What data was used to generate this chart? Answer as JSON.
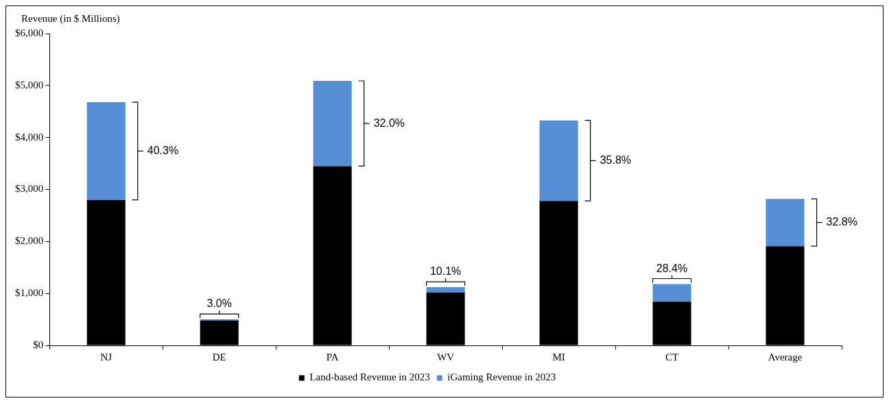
{
  "chart_data": {
    "type": "bar",
    "stacked": true,
    "ylabel": "Revenue (in $ Millions)",
    "categories": [
      "NJ",
      "DE",
      "PA",
      "WV",
      "MI",
      "CT",
      "Average"
    ],
    "series": [
      {
        "name": "Land-based Revenue in 2023",
        "color": "#000000",
        "values": [
          2800,
          480,
          3450,
          1020,
          2780,
          840,
          1910
        ]
      },
      {
        "name": "iGaming Revenue in 2023",
        "color": "#558ed5",
        "values": [
          1880,
          20,
          1640,
          100,
          1550,
          340,
          910
        ]
      }
    ],
    "ylim": [
      0,
      6000
    ],
    "yticks": [
      {
        "value": 0,
        "label": "$0"
      },
      {
        "value": 1000,
        "label": "$1,000"
      },
      {
        "value": 2000,
        "label": "$2,000"
      },
      {
        "value": 3000,
        "label": "$3,000"
      },
      {
        "value": 4000,
        "label": "$4,000"
      },
      {
        "value": 5000,
        "label": "$5,000"
      },
      {
        "value": 6000,
        "label": "$6,000"
      }
    ],
    "legend": "bottom",
    "annotations": [
      "40.3%",
      "3.0%",
      "32.0%",
      "10.1%",
      "35.8%",
      "28.4%",
      "32.8%"
    ]
  }
}
